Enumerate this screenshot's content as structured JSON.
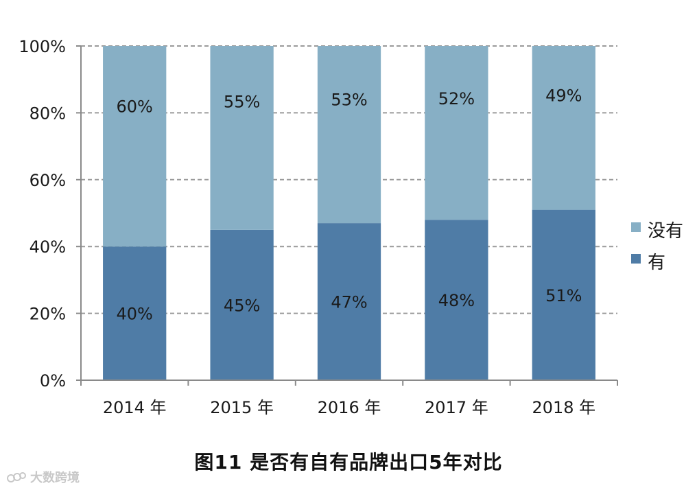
{
  "chart_data": {
    "type": "bar",
    "stacked": true,
    "categories": [
      "2014 年",
      "2015 年",
      "2016 年",
      "2017 年",
      "2018 年"
    ],
    "series": [
      {
        "name": "有",
        "values": [
          40,
          45,
          47,
          48,
          51
        ],
        "color": "#4f7ca6",
        "labels": [
          "40%",
          "45%",
          "47%",
          "48%",
          "51%"
        ]
      },
      {
        "name": "没有",
        "values": [
          60,
          55,
          53,
          52,
          49
        ],
        "color": "#87afc5",
        "labels": [
          "60%",
          "55%",
          "53%",
          "52%",
          "49%"
        ]
      }
    ],
    "yticks": [
      "0%",
      "20%",
      "40%",
      "60%",
      "80%",
      "100%"
    ],
    "ylim": [
      0,
      100
    ],
    "grid": true,
    "legend_position": "right",
    "legend_order": [
      "没有",
      "有"
    ]
  },
  "caption": "图11  是否有自有品牌出口5年对比",
  "watermark": "大数跨境"
}
